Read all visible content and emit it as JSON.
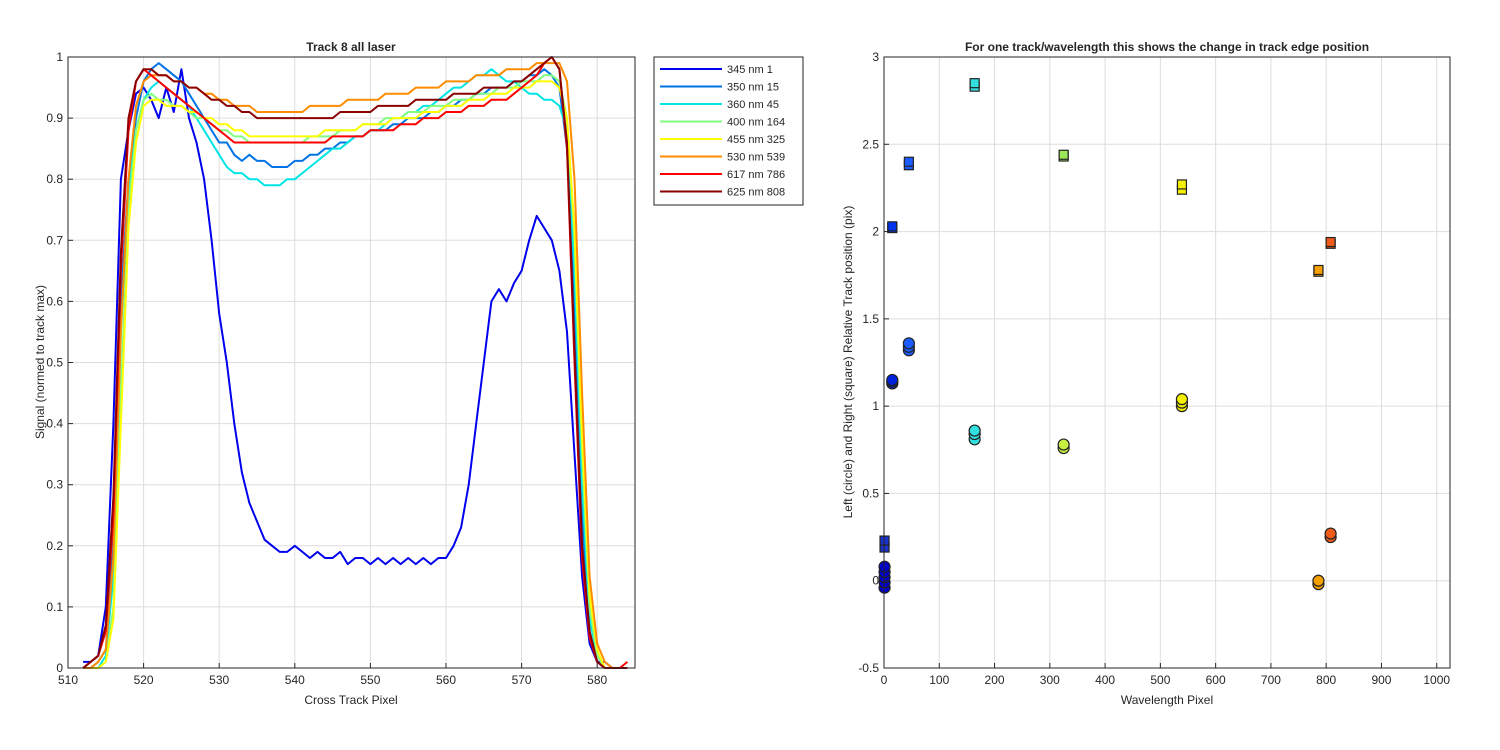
{
  "chart_data": [
    {
      "type": "line",
      "title": "Track 8  all laser",
      "xlabel": "Cross Track Pixel",
      "ylabel": "Signal (normed to track max)",
      "xlim": [
        510,
        585
      ],
      "ylim": [
        0,
        1
      ],
      "xticks": [
        "510",
        "520",
        "530",
        "540",
        "550",
        "560",
        "570",
        "580"
      ],
      "yticks": [
        "0",
        "0.1",
        "0.2",
        "0.3",
        "0.4",
        "0.5",
        "0.6",
        "0.7",
        "0.8",
        "0.9",
        "1"
      ],
      "grid": true,
      "legend_position": "outside-top-right",
      "x": [
        512,
        513,
        514,
        515,
        516,
        517,
        518,
        519,
        520,
        521,
        522,
        523,
        524,
        525,
        526,
        527,
        528,
        529,
        530,
        531,
        532,
        533,
        534,
        535,
        536,
        537,
        538,
        539,
        540,
        541,
        542,
        543,
        544,
        545,
        546,
        547,
        548,
        549,
        550,
        551,
        552,
        553,
        554,
        555,
        556,
        557,
        558,
        559,
        560,
        561,
        562,
        563,
        564,
        565,
        566,
        567,
        568,
        569,
        570,
        571,
        572,
        573,
        574,
        575,
        576,
        577,
        578,
        579,
        580,
        581,
        582,
        583,
        584
      ],
      "series": [
        {
          "name": "345 nm 1",
          "color": "#0000ee",
          "values": [
            0.01,
            0.01,
            0.02,
            0.1,
            0.4,
            0.8,
            0.88,
            0.94,
            0.95,
            0.93,
            0.9,
            0.95,
            0.91,
            0.98,
            0.9,
            0.86,
            0.8,
            0.7,
            0.58,
            0.5,
            0.4,
            0.32,
            0.27,
            0.24,
            0.21,
            0.2,
            0.19,
            0.19,
            0.2,
            0.19,
            0.18,
            0.19,
            0.18,
            0.18,
            0.19,
            0.17,
            0.18,
            0.18,
            0.17,
            0.18,
            0.17,
            0.18,
            0.17,
            0.18,
            0.17,
            0.18,
            0.17,
            0.18,
            0.18,
            0.2,
            0.23,
            0.3,
            0.4,
            0.5,
            0.6,
            0.62,
            0.6,
            0.63,
            0.65,
            0.7,
            0.74,
            0.72,
            0.7,
            0.65,
            0.55,
            0.35,
            0.15,
            0.04,
            0.01,
            0.01,
            0.0,
            0.0,
            0.0
          ]
        },
        {
          "name": "350 nm 15",
          "color": "#0073e6",
          "values": [
            0.0,
            0.0,
            0.01,
            0.03,
            0.2,
            0.6,
            0.8,
            0.9,
            0.96,
            0.98,
            0.99,
            0.98,
            0.97,
            0.96,
            0.94,
            0.92,
            0.9,
            0.88,
            0.86,
            0.86,
            0.84,
            0.83,
            0.84,
            0.83,
            0.83,
            0.82,
            0.82,
            0.82,
            0.83,
            0.83,
            0.84,
            0.84,
            0.85,
            0.85,
            0.86,
            0.86,
            0.87,
            0.87,
            0.88,
            0.88,
            0.88,
            0.89,
            0.89,
            0.9,
            0.9,
            0.9,
            0.91,
            0.91,
            0.92,
            0.92,
            0.93,
            0.93,
            0.94,
            0.94,
            0.95,
            0.95,
            0.95,
            0.96,
            0.96,
            0.97,
            0.97,
            0.98,
            0.97,
            0.95,
            0.85,
            0.6,
            0.25,
            0.06,
            0.01,
            0.0,
            0.0,
            0.0,
            0.0
          ]
        },
        {
          "name": "360 nm 45",
          "color": "#00e5e5",
          "values": [
            0.0,
            0.0,
            0.0,
            0.02,
            0.15,
            0.55,
            0.78,
            0.88,
            0.93,
            0.95,
            0.96,
            0.95,
            0.94,
            0.93,
            0.92,
            0.9,
            0.88,
            0.86,
            0.84,
            0.82,
            0.81,
            0.81,
            0.8,
            0.8,
            0.79,
            0.79,
            0.79,
            0.8,
            0.8,
            0.81,
            0.82,
            0.83,
            0.84,
            0.85,
            0.85,
            0.86,
            0.87,
            0.87,
            0.88,
            0.88,
            0.89,
            0.9,
            0.9,
            0.91,
            0.91,
            0.92,
            0.92,
            0.93,
            0.94,
            0.95,
            0.95,
            0.96,
            0.97,
            0.97,
            0.98,
            0.97,
            0.96,
            0.96,
            0.95,
            0.94,
            0.94,
            0.93,
            0.93,
            0.92,
            0.88,
            0.65,
            0.3,
            0.08,
            0.02,
            0.0,
            0.0,
            0.0,
            0.0
          ]
        },
        {
          "name": "400 nm 164",
          "color": "#80ff80",
          "values": [
            0.0,
            0.0,
            0.0,
            0.01,
            0.1,
            0.45,
            0.75,
            0.88,
            0.93,
            0.94,
            0.93,
            0.93,
            0.92,
            0.92,
            0.91,
            0.9,
            0.9,
            0.89,
            0.88,
            0.88,
            0.87,
            0.87,
            0.86,
            0.86,
            0.86,
            0.86,
            0.86,
            0.86,
            0.86,
            0.86,
            0.87,
            0.87,
            0.87,
            0.87,
            0.88,
            0.88,
            0.88,
            0.89,
            0.89,
            0.89,
            0.9,
            0.9,
            0.9,
            0.91,
            0.91,
            0.91,
            0.92,
            0.92,
            0.92,
            0.93,
            0.93,
            0.93,
            0.94,
            0.94,
            0.94,
            0.95,
            0.95,
            0.95,
            0.96,
            0.96,
            0.96,
            0.97,
            0.97,
            0.96,
            0.9,
            0.7,
            0.35,
            0.1,
            0.02,
            0.0,
            0.0,
            0.0,
            0.0
          ]
        },
        {
          "name": "455 nm 325",
          "color": "#ffff00",
          "values": [
            0.0,
            0.0,
            0.0,
            0.01,
            0.08,
            0.4,
            0.72,
            0.86,
            0.92,
            0.93,
            0.93,
            0.92,
            0.92,
            0.92,
            0.91,
            0.91,
            0.9,
            0.9,
            0.89,
            0.89,
            0.88,
            0.88,
            0.87,
            0.87,
            0.87,
            0.87,
            0.87,
            0.87,
            0.87,
            0.87,
            0.87,
            0.87,
            0.88,
            0.88,
            0.88,
            0.88,
            0.88,
            0.89,
            0.89,
            0.89,
            0.89,
            0.9,
            0.9,
            0.9,
            0.9,
            0.91,
            0.91,
            0.91,
            0.92,
            0.92,
            0.92,
            0.93,
            0.93,
            0.93,
            0.94,
            0.94,
            0.94,
            0.95,
            0.95,
            0.95,
            0.96,
            0.96,
            0.96,
            0.95,
            0.9,
            0.72,
            0.38,
            0.12,
            0.03,
            0.0,
            0.0,
            0.0,
            0.0
          ]
        },
        {
          "name": "530 nm 539",
          "color": "#ff8c00",
          "values": [
            0.0,
            0.0,
            0.01,
            0.03,
            0.18,
            0.55,
            0.8,
            0.92,
            0.96,
            0.97,
            0.97,
            0.97,
            0.96,
            0.96,
            0.95,
            0.95,
            0.94,
            0.94,
            0.93,
            0.93,
            0.92,
            0.92,
            0.92,
            0.91,
            0.91,
            0.91,
            0.91,
            0.91,
            0.91,
            0.91,
            0.92,
            0.92,
            0.92,
            0.92,
            0.92,
            0.93,
            0.93,
            0.93,
            0.93,
            0.93,
            0.94,
            0.94,
            0.94,
            0.94,
            0.95,
            0.95,
            0.95,
            0.95,
            0.96,
            0.96,
            0.96,
            0.96,
            0.97,
            0.97,
            0.97,
            0.97,
            0.98,
            0.98,
            0.98,
            0.98,
            0.99,
            0.99,
            0.99,
            0.99,
            0.96,
            0.8,
            0.45,
            0.15,
            0.04,
            0.01,
            0.0,
            0.0,
            0.0
          ]
        },
        {
          "name": "617 nm 786",
          "color": "#ff0000",
          "values": [
            0.0,
            0.01,
            0.02,
            0.06,
            0.25,
            0.65,
            0.88,
            0.96,
            0.98,
            0.97,
            0.96,
            0.95,
            0.94,
            0.93,
            0.92,
            0.91,
            0.9,
            0.89,
            0.88,
            0.87,
            0.86,
            0.86,
            0.86,
            0.86,
            0.86,
            0.86,
            0.86,
            0.86,
            0.86,
            0.86,
            0.86,
            0.86,
            0.86,
            0.87,
            0.87,
            0.87,
            0.87,
            0.87,
            0.88,
            0.88,
            0.88,
            0.88,
            0.89,
            0.89,
            0.89,
            0.9,
            0.9,
            0.9,
            0.91,
            0.91,
            0.91,
            0.92,
            0.92,
            0.92,
            0.93,
            0.93,
            0.93,
            0.94,
            0.95,
            0.96,
            0.97,
            0.99,
            1.0,
            0.98,
            0.85,
            0.5,
            0.18,
            0.05,
            0.01,
            0.0,
            0.0,
            0.0,
            0.01
          ]
        },
        {
          "name": "625 nm 808",
          "color": "#8b0000",
          "values": [
            0.0,
            0.01,
            0.02,
            0.07,
            0.28,
            0.68,
            0.9,
            0.96,
            0.98,
            0.98,
            0.97,
            0.97,
            0.96,
            0.96,
            0.95,
            0.95,
            0.94,
            0.93,
            0.93,
            0.92,
            0.92,
            0.91,
            0.91,
            0.9,
            0.9,
            0.9,
            0.9,
            0.9,
            0.9,
            0.9,
            0.9,
            0.9,
            0.9,
            0.9,
            0.91,
            0.91,
            0.91,
            0.91,
            0.91,
            0.92,
            0.92,
            0.92,
            0.92,
            0.92,
            0.93,
            0.93,
            0.93,
            0.93,
            0.93,
            0.94,
            0.94,
            0.94,
            0.94,
            0.95,
            0.95,
            0.95,
            0.95,
            0.96,
            0.96,
            0.97,
            0.98,
            0.99,
            1.0,
            0.98,
            0.86,
            0.52,
            0.2,
            0.06,
            0.01,
            0.0,
            0.0,
            0.0,
            0.0
          ]
        }
      ]
    },
    {
      "type": "scatter",
      "title": "For one track/wavelength this shows the change in track edge position",
      "xlabel": "Wavelength Pixel",
      "ylabel": "Left (circle) and Right (square) Relative Track position (pix)",
      "xlim": [
        0,
        1024
      ],
      "ylim": [
        -0.5,
        3
      ],
      "xticks": [
        "0",
        "100",
        "200",
        "300",
        "400",
        "500",
        "600",
        "700",
        "800",
        "900",
        "1000"
      ],
      "yticks": [
        "-0.5",
        "0",
        "0.5",
        "1",
        "1.5",
        "2",
        "2.5",
        "3"
      ],
      "grid": true,
      "series": [
        {
          "marker": "circle",
          "x": 1,
          "y": [
            -0.04,
            -0.01,
            0.02,
            0.05,
            0.08
          ],
          "color": "#0000cc"
        },
        {
          "marker": "square",
          "x": 1,
          "y": [
            0.19,
            0.23
          ],
          "color": "#1a33cc"
        },
        {
          "marker": "circle",
          "x": 15,
          "y": [
            1.13,
            1.14,
            1.15
          ],
          "color": "#0022dd"
        },
        {
          "marker": "square",
          "x": 15,
          "y": [
            2.02,
            2.03
          ],
          "color": "#0033ee"
        },
        {
          "marker": "circle",
          "x": 45,
          "y": [
            1.32,
            1.34,
            1.36
          ],
          "color": "#1a5cff"
        },
        {
          "marker": "square",
          "x": 45,
          "y": [
            2.38,
            2.4
          ],
          "color": "#1a5cff"
        },
        {
          "marker": "circle",
          "x": 164,
          "y": [
            0.81,
            0.84,
            0.86
          ],
          "color": "#33e0e0"
        },
        {
          "marker": "square",
          "x": 164,
          "y": [
            2.83,
            2.85
          ],
          "color": "#33e0e0"
        },
        {
          "marker": "circle",
          "x": 325,
          "y": [
            0.76,
            0.78
          ],
          "color": "#c8f040"
        },
        {
          "marker": "square",
          "x": 325,
          "y": [
            2.43,
            2.44
          ],
          "color": "#9ce85a"
        },
        {
          "marker": "circle",
          "x": 539,
          "y": [
            1.0,
            1.02,
            1.04
          ],
          "color": "#f5f000"
        },
        {
          "marker": "square",
          "x": 539,
          "y": [
            2.24,
            2.27
          ],
          "color": "#f5f000"
        },
        {
          "marker": "circle",
          "x": 786,
          "y": [
            -0.02,
            0.0
          ],
          "color": "#f5a000"
        },
        {
          "marker": "square",
          "x": 786,
          "y": [
            1.77,
            1.78
          ],
          "color": "#f5a000"
        },
        {
          "marker": "circle",
          "x": 808,
          "y": [
            0.25,
            0.27
          ],
          "color": "#f05a1a"
        },
        {
          "marker": "square",
          "x": 808,
          "y": [
            1.93,
            1.94
          ],
          "color": "#f05a1a"
        }
      ]
    }
  ]
}
